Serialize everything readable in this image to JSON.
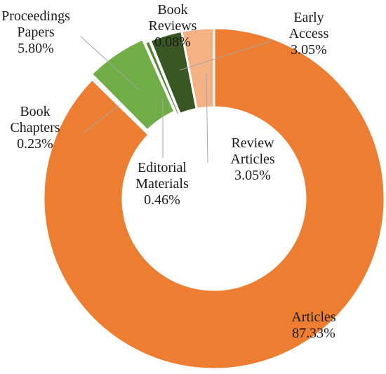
{
  "chart_data": {
    "type": "donut",
    "categories": [
      "Articles",
      "Book Chapters",
      "Proceedings Papers",
      "Editorial Materials",
      "Book Reviews",
      "Early Access",
      "Review Articles"
    ],
    "values": [
      87.33,
      0.23,
      5.8,
      0.46,
      0.08,
      3.05,
      3.05
    ],
    "value_labels": [
      "87.33%",
      "0.23%",
      "5.80%",
      "0.46%",
      "0.08%",
      "3.05%",
      "3.05%"
    ],
    "colors": [
      "#ed7d31",
      "#a9d18e",
      "#70ad47",
      "#548235",
      "#c5e0b4",
      "#385723",
      "#f4b183"
    ]
  }
}
